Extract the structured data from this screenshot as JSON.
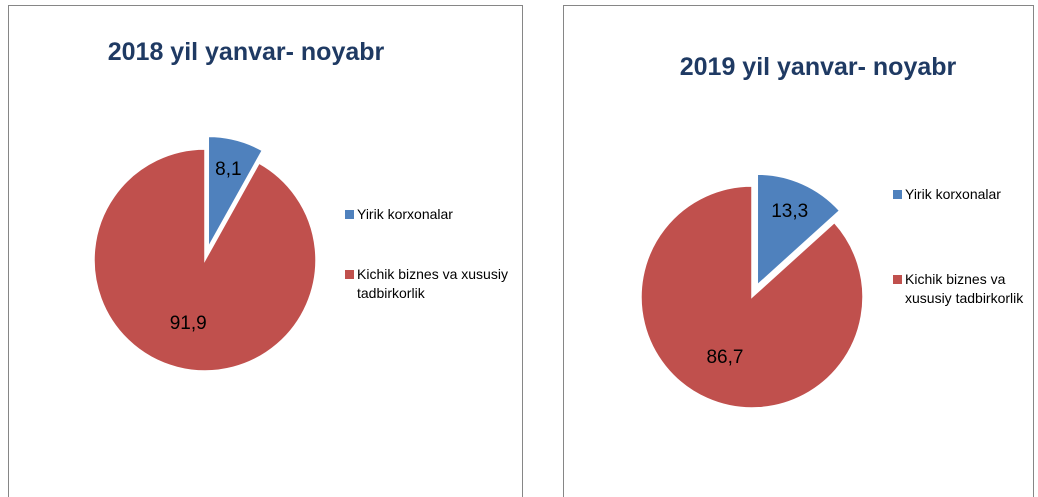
{
  "chart_data": [
    {
      "type": "pie",
      "title": "2018 yil yanvar- noyabr",
      "categories": [
        "Yirik korxonalar",
        "Kichik biznes va xususiy tadbirkorlik"
      ],
      "values": [
        8.1,
        91.9
      ],
      "value_labels": [
        "8,1",
        "91,9"
      ],
      "colors": [
        "#4f81bd",
        "#c0504d"
      ]
    },
    {
      "type": "pie",
      "title": "2019 yil yanvar- noyabr",
      "categories": [
        "Yirik korxonalar",
        "Kichik biznes va xususiy tadbirkorlik"
      ],
      "values": [
        13.3,
        86.7
      ],
      "value_labels": [
        "13,3",
        "86,7"
      ],
      "colors": [
        "#4f81bd",
        "#c0504d"
      ]
    }
  ]
}
